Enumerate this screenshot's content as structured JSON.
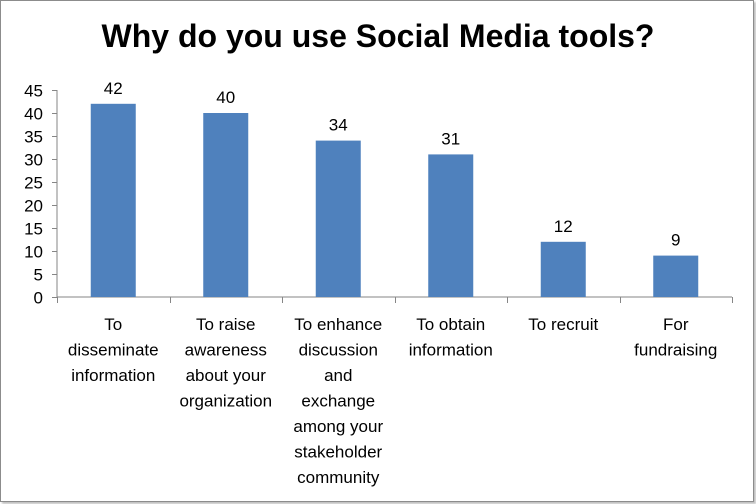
{
  "chart_data": {
    "type": "bar",
    "title": "Why do you use Social Media tools?",
    "xlabel": "",
    "ylabel": "",
    "ylim": [
      0,
      45
    ],
    "yticks": [
      0,
      5,
      10,
      15,
      20,
      25,
      30,
      35,
      40,
      45
    ],
    "grid": false,
    "legend": "none",
    "categories": [
      [
        "To",
        "disseminate",
        "information"
      ],
      [
        "To raise",
        "awareness",
        "about your",
        "organization"
      ],
      [
        "To enhance",
        "discussion",
        "and",
        "exchange",
        "among your",
        "stakeholder",
        "community"
      ],
      [
        "To obtain",
        "information"
      ],
      [
        "To recruit"
      ],
      [
        "For",
        "fundraising"
      ]
    ],
    "values": [
      42,
      40,
      34,
      31,
      12,
      9
    ],
    "bar_color": "#4f81bd"
  }
}
